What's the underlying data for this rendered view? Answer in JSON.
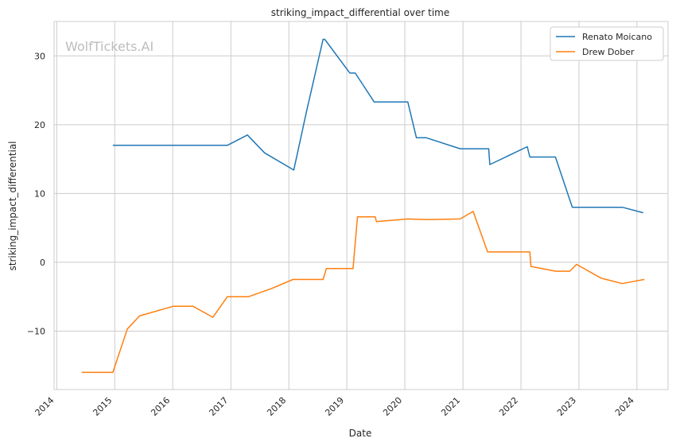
{
  "watermark": "WolfTickets.AI",
  "chart_data": {
    "type": "line",
    "title": "striking_impact_differential over time",
    "xlabel": "Date",
    "ylabel": "striking_impact_differential",
    "x_type": "date",
    "xlim": [
      "2013-12-15",
      "2024-07-15"
    ],
    "ylim": [
      -18.5,
      35
    ],
    "x_ticks": [
      "2014",
      "2015",
      "2016",
      "2017",
      "2018",
      "2019",
      "2020",
      "2021",
      "2022",
      "2023",
      "2024"
    ],
    "y_ticks": [
      -10,
      0,
      10,
      20,
      30
    ],
    "y_tick_labels": [
      "−10",
      "0",
      "10",
      "20",
      "30"
    ],
    "grid": true,
    "legend": "top-right",
    "series": [
      {
        "name": "Renato Moicano",
        "color": "#1f77b4",
        "points": [
          [
            "2014-12-20",
            17.0
          ],
          [
            "2016-12-10",
            17.0
          ],
          [
            "2017-04-15",
            18.5
          ],
          [
            "2017-08-01",
            15.9
          ],
          [
            "2018-02-01",
            13.4
          ],
          [
            "2018-04-21",
            21.8
          ],
          [
            "2018-08-04",
            32.4
          ],
          [
            "2018-08-15",
            32.4
          ],
          [
            "2019-01-20",
            27.5
          ],
          [
            "2019-02-23",
            27.5
          ],
          [
            "2019-06-22",
            23.3
          ],
          [
            "2020-01-20",
            23.3
          ],
          [
            "2020-03-14",
            18.1
          ],
          [
            "2020-05-15",
            18.1
          ],
          [
            "2020-12-15",
            16.5
          ],
          [
            "2021-06-12",
            16.5
          ],
          [
            "2021-06-19",
            14.2
          ],
          [
            "2022-02-10",
            16.8
          ],
          [
            "2022-02-26",
            15.3
          ],
          [
            "2022-08-06",
            15.3
          ],
          [
            "2022-11-20",
            8.0
          ],
          [
            "2023-10-01",
            8.0
          ],
          [
            "2024-02-10",
            7.2
          ]
        ]
      },
      {
        "name": "Drew Dober",
        "color": "#ff7f0e",
        "points": [
          [
            "2014-06-07",
            -16.0
          ],
          [
            "2014-12-20",
            -16.0
          ],
          [
            "2015-03-21",
            -9.7
          ],
          [
            "2015-06-06",
            -7.8
          ],
          [
            "2016-01-02",
            -6.4
          ],
          [
            "2016-05-08",
            -6.4
          ],
          [
            "2016-09-10",
            -8.0
          ],
          [
            "2016-12-10",
            -5.0
          ],
          [
            "2017-04-22",
            -5.0
          ],
          [
            "2017-09-16",
            -3.8
          ],
          [
            "2018-01-27",
            -2.5
          ],
          [
            "2018-08-04",
            -2.5
          ],
          [
            "2018-08-25",
            -0.9
          ],
          [
            "2019-02-09",
            -0.9
          ],
          [
            "2019-03-09",
            6.6
          ],
          [
            "2019-06-29",
            6.6
          ],
          [
            "2019-07-06",
            5.9
          ],
          [
            "2020-01-18",
            6.3
          ],
          [
            "2020-05-23",
            6.2
          ],
          [
            "2020-12-15",
            6.3
          ],
          [
            "2021-03-06",
            7.4
          ],
          [
            "2021-06-05",
            1.5
          ],
          [
            "2022-02-26",
            1.5
          ],
          [
            "2022-03-05",
            -0.6
          ],
          [
            "2022-08-06",
            -1.3
          ],
          [
            "2022-11-05",
            -1.3
          ],
          [
            "2022-12-17",
            -0.3
          ],
          [
            "2023-05-20",
            -2.3
          ],
          [
            "2023-09-30",
            -3.1
          ],
          [
            "2024-02-17",
            -2.5
          ]
        ]
      }
    ]
  }
}
